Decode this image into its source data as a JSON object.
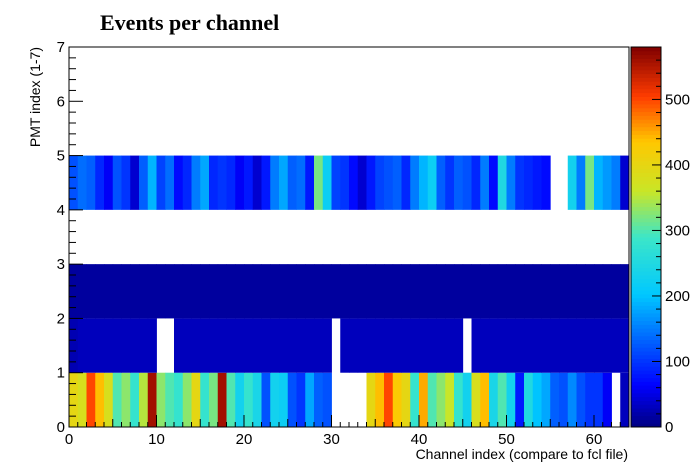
{
  "chart_data": {
    "type": "heatmap",
    "title": "Events per channel",
    "xlabel": "Channel index (compare to fcl file)",
    "ylabel": "PMT index (1-7)",
    "xlim": [
      0,
      64
    ],
    "ylim": [
      0,
      7
    ],
    "x_ticks": [
      0,
      10,
      20,
      30,
      40,
      50,
      60
    ],
    "y_ticks": [
      0,
      1,
      2,
      3,
      4,
      5,
      6,
      7
    ],
    "colorbar": {
      "min": 0,
      "max": 580,
      "ticks": [
        0,
        100,
        200,
        300,
        400,
        500
      ],
      "palette": "jet"
    },
    "grid": false,
    "legend": "colorbar-right",
    "rows": [
      {
        "pmt": 0,
        "values": [
          400,
          380,
          500,
          440,
          380,
          300,
          330,
          280,
          350,
          560,
          330,
          300,
          280,
          330,
          400,
          280,
          320,
          560,
          300,
          230,
          280,
          240,
          120,
          230,
          220,
          120,
          100,
          180,
          130,
          120,
          null,
          null,
          null,
          null,
          400,
          440,
          500,
          430,
          400,
          280,
          450,
          300,
          330,
          360,
          280,
          230,
          380,
          440,
          240,
          300,
          230,
          80,
          250,
          200,
          180,
          130,
          120,
          160,
          120,
          100,
          100,
          60,
          null,
          30
        ]
      },
      {
        "pmt": 1,
        "values": [
          25,
          30,
          30,
          30,
          30,
          30,
          30,
          30,
          30,
          30,
          null,
          null,
          30,
          30,
          30,
          30,
          30,
          30,
          30,
          30,
          30,
          30,
          30,
          30,
          30,
          30,
          30,
          30,
          30,
          30,
          null,
          30,
          30,
          30,
          30,
          30,
          30,
          30,
          30,
          30,
          30,
          30,
          30,
          30,
          30,
          null,
          30,
          30,
          30,
          30,
          30,
          30,
          30,
          30,
          30,
          30,
          30,
          30,
          30,
          30,
          30,
          30,
          30,
          30
        ]
      },
      {
        "pmt": 2,
        "values": [
          15,
          15,
          15,
          15,
          15,
          15,
          15,
          15,
          15,
          15,
          15,
          15,
          15,
          15,
          15,
          15,
          15,
          15,
          15,
          15,
          15,
          15,
          15,
          15,
          15,
          15,
          15,
          15,
          15,
          15,
          15,
          15,
          15,
          15,
          15,
          15,
          15,
          15,
          15,
          15,
          15,
          15,
          15,
          15,
          15,
          15,
          15,
          15,
          15,
          15,
          15,
          15,
          15,
          15,
          15,
          15,
          15,
          15,
          15,
          15,
          15,
          15,
          15,
          15
        ]
      },
      {
        "pmt": 3,
        "values": [
          null,
          null,
          null,
          null,
          null,
          null,
          null,
          null,
          null,
          null,
          null,
          null,
          null,
          null,
          null,
          null,
          null,
          null,
          null,
          null,
          null,
          null,
          null,
          null,
          null,
          null,
          null,
          null,
          null,
          null,
          null,
          null,
          null,
          null,
          null,
          null,
          null,
          null,
          null,
          null,
          null,
          null,
          null,
          null,
          null,
          null,
          null,
          null,
          null,
          null,
          null,
          null,
          null,
          null,
          null,
          null,
          null,
          null,
          null,
          null,
          null,
          null,
          null,
          null
        ]
      },
      {
        "pmt": 4,
        "values": [
          120,
          140,
          130,
          90,
          60,
          120,
          100,
          40,
          130,
          190,
          110,
          140,
          70,
          90,
          150,
          180,
          90,
          100,
          90,
          60,
          80,
          40,
          80,
          150,
          180,
          130,
          140,
          80,
          320,
          220,
          110,
          100,
          70,
          40,
          80,
          110,
          120,
          130,
          90,
          150,
          190,
          220,
          130,
          100,
          130,
          120,
          90,
          150,
          70,
          250,
          150,
          100,
          90,
          80,
          70,
          null,
          null,
          230,
          150,
          320,
          190,
          170,
          150,
          40
        ]
      },
      {
        "pmt": 5,
        "values": [
          null,
          null,
          null,
          null,
          null,
          null,
          null,
          null,
          null,
          null,
          null,
          null,
          null,
          null,
          null,
          null,
          null,
          null,
          null,
          null,
          null,
          null,
          null,
          null,
          null,
          null,
          null,
          null,
          null,
          null,
          null,
          null,
          null,
          null,
          null,
          null,
          null,
          null,
          null,
          null,
          null,
          null,
          null,
          null,
          null,
          null,
          null,
          null,
          null,
          null,
          null,
          null,
          null,
          null,
          null,
          null,
          null,
          null,
          null,
          null,
          null,
          null,
          null,
          null
        ]
      },
      {
        "pmt": 6,
        "values": [
          null,
          null,
          null,
          null,
          null,
          null,
          null,
          null,
          null,
          null,
          null,
          null,
          null,
          null,
          null,
          null,
          null,
          null,
          null,
          null,
          null,
          null,
          null,
          null,
          null,
          null,
          null,
          null,
          null,
          null,
          null,
          null,
          null,
          null,
          null,
          null,
          null,
          null,
          null,
          null,
          null,
          null,
          null,
          null,
          null,
          null,
          null,
          null,
          null,
          null,
          null,
          null,
          null,
          null,
          null,
          null,
          null,
          null,
          null,
          null,
          null,
          null,
          null,
          null
        ]
      }
    ]
  }
}
